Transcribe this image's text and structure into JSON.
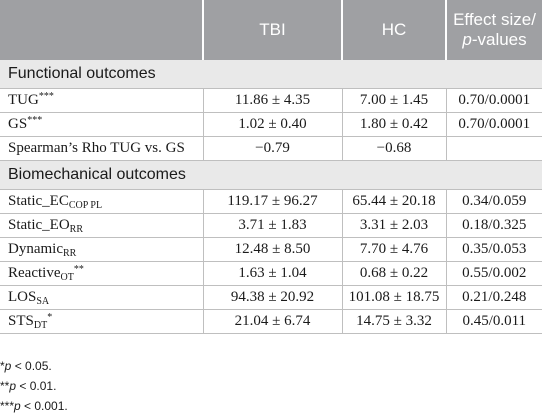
{
  "header": {
    "col2": "TBI",
    "col3": "HC",
    "col4_line1": "Effect size/",
    "col4_p": "p",
    "col4_rest": "-values"
  },
  "sections": {
    "functional": "Functional outcomes",
    "biomechanical": "Biomechanical outcomes"
  },
  "rows": {
    "tug": {
      "label": "TUG",
      "sup": "***",
      "tbi": "11.86 ± 4.35",
      "hc": "7.00 ± 1.45",
      "eff": "0.70/0.0001"
    },
    "gs": {
      "label": "GS",
      "sup": "***",
      "tbi": "1.02 ± 0.40",
      "hc": "1.80 ± 0.42",
      "eff": "0.70/0.0001"
    },
    "rho": {
      "label": "Spearman’s Rho TUG vs. GS",
      "tbi": "−0.79",
      "hc": "−0.68",
      "eff": ""
    },
    "static_ec": {
      "label": "Static_EC",
      "sub": "COP PL",
      "tbi": "119.17 ± 96.27",
      "hc": "65.44 ± 20.18",
      "eff": "0.34/0.059"
    },
    "static_eo": {
      "label": "Static_EO",
      "sub": "RR",
      "tbi": "3.71 ± 1.83",
      "hc": "3.31 ± 2.03",
      "eff": "0.18/0.325"
    },
    "dynamic": {
      "label": "Dynamic",
      "sub": "RR",
      "tbi": "12.48 ± 8.50",
      "hc": "7.70 ± 4.76",
      "eff": "0.35/0.053"
    },
    "reactive": {
      "label": "Reactive",
      "sub": "OT",
      "sup": "**",
      "tbi": "1.63 ± 1.04",
      "hc": "0.68 ± 0.22",
      "eff": "0.55/0.002"
    },
    "los": {
      "label": "LOS",
      "sub": "SA",
      "tbi": "94.38 ± 20.92",
      "hc": "101.08 ± 18.75",
      "eff": "0.21/0.248"
    },
    "sts": {
      "label": "STS",
      "sub": "DT",
      "sup": "*",
      "tbi": "21.04 ± 6.74",
      "hc": "14.75 ± 3.32",
      "eff": "0.45/0.011"
    }
  },
  "footnotes": {
    "f1_stars": "*",
    "f1_p": "p",
    "f1_rest": " < 0.05.",
    "f2_stars": "**",
    "f2_p": "p",
    "f2_rest": " < 0.01.",
    "f3_stars": "***",
    "f3_p": "p",
    "f3_rest": " < 0.001."
  }
}
